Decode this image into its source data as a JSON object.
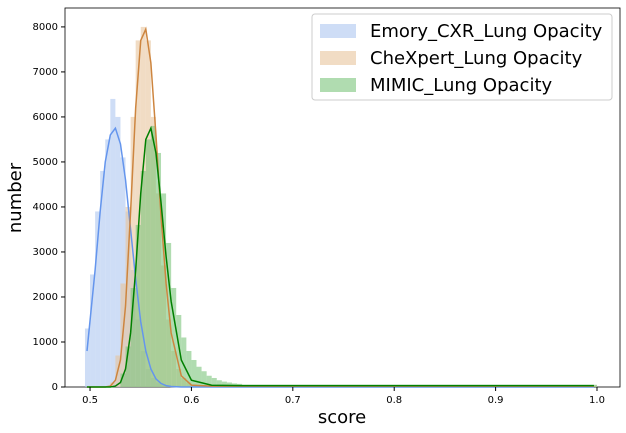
{
  "chart_data": {
    "type": "histogram",
    "xlabel": "score",
    "ylabel": "number",
    "xlim": [
      0.4753,
      1.0227
    ],
    "ylim": [
      0,
      8420
    ],
    "xticks": [
      0.5,
      0.6,
      0.7,
      0.8,
      0.9,
      {
        "value": 1,
        "label": "1.0"
      }
    ],
    "yticks": [
      0,
      1000,
      2000,
      3000,
      4000,
      5000,
      6000,
      7000,
      8000
    ],
    "legend": "upper right",
    "bins": [
      0.495,
      0.5,
      0.505,
      0.51,
      0.515,
      0.52,
      0.525,
      0.53,
      0.535,
      0.54,
      0.545,
      0.55,
      0.555,
      0.56,
      0.565,
      0.57,
      0.575,
      0.58,
      0.585,
      0.59,
      0.595,
      0.6,
      0.605,
      0.61,
      0.615,
      0.62,
      0.625,
      0.63,
      0.635,
      0.64,
      0.645,
      0.65,
      1.0
    ],
    "series": [
      {
        "name": "Emory_CXR_Lung Opacity",
        "color": "#aec7f0",
        "values": [
          1300,
          2500,
          3900,
          4800,
          5500,
          6400,
          6000,
          5100,
          3900,
          2600,
          1500,
          800,
          400,
          200,
          100,
          60,
          40,
          30,
          30,
          25,
          25,
          20,
          20,
          20,
          20,
          20,
          20,
          20,
          20,
          20,
          20,
          20
        ]
      },
      {
        "name": "CheXpert_Lung Opacity",
        "color": "#e8c49c",
        "values": [
          0,
          0,
          0,
          0,
          0,
          100,
          700,
          2300,
          4000,
          6000,
          7700,
          8000,
          7700,
          6000,
          4300,
          2700,
          1500,
          800,
          400,
          200,
          100,
          60,
          50,
          45,
          40,
          40,
          40,
          40,
          40,
          40,
          40,
          40
        ]
      },
      {
        "name": "MIMIC_Lung Opacity",
        "color": "#7cc47c",
        "values": [
          0,
          0,
          0,
          0,
          0,
          0,
          0,
          300,
          900,
          2200,
          3600,
          4800,
          5500,
          5800,
          5200,
          4300,
          3200,
          2200,
          1600,
          1100,
          800,
          600,
          450,
          350,
          250,
          200,
          150,
          120,
          100,
          80,
          70,
          50
        ]
      }
    ],
    "kde": {
      "x": [
        0.497,
        0.505,
        0.51,
        0.515,
        0.52,
        0.525,
        0.53,
        0.535,
        0.54,
        0.545,
        0.55,
        0.555,
        0.56,
        0.565,
        0.57,
        0.575,
        0.58,
        0.59,
        0.6,
        0.62,
        0.65,
        0.7,
        0.8,
        0.9,
        0.997
      ],
      "series": [
        {
          "color": "#6495ed",
          "values": [
            800,
            2600,
            3900,
            5000,
            5600,
            5750,
            5400,
            4600,
            3500,
            2400,
            1450,
            800,
            400,
            180,
            80,
            30,
            10,
            0,
            0,
            0,
            0,
            0,
            0,
            0,
            0
          ]
        },
        {
          "color": "#cd853f",
          "values": [
            0,
            0,
            0,
            0,
            20,
            150,
            600,
            1800,
            3900,
            6200,
            7700,
            7950,
            7200,
            5600,
            3800,
            2300,
            1200,
            250,
            40,
            20,
            20,
            20,
            20,
            20,
            20
          ]
        },
        {
          "color": "#008000",
          "values": [
            0,
            0,
            0,
            0,
            0,
            20,
            100,
            400,
            1200,
            2600,
            4300,
            5500,
            5750,
            5200,
            4100,
            2900,
            1900,
            600,
            150,
            40,
            30,
            30,
            30,
            30,
            30
          ]
        }
      ]
    }
  }
}
